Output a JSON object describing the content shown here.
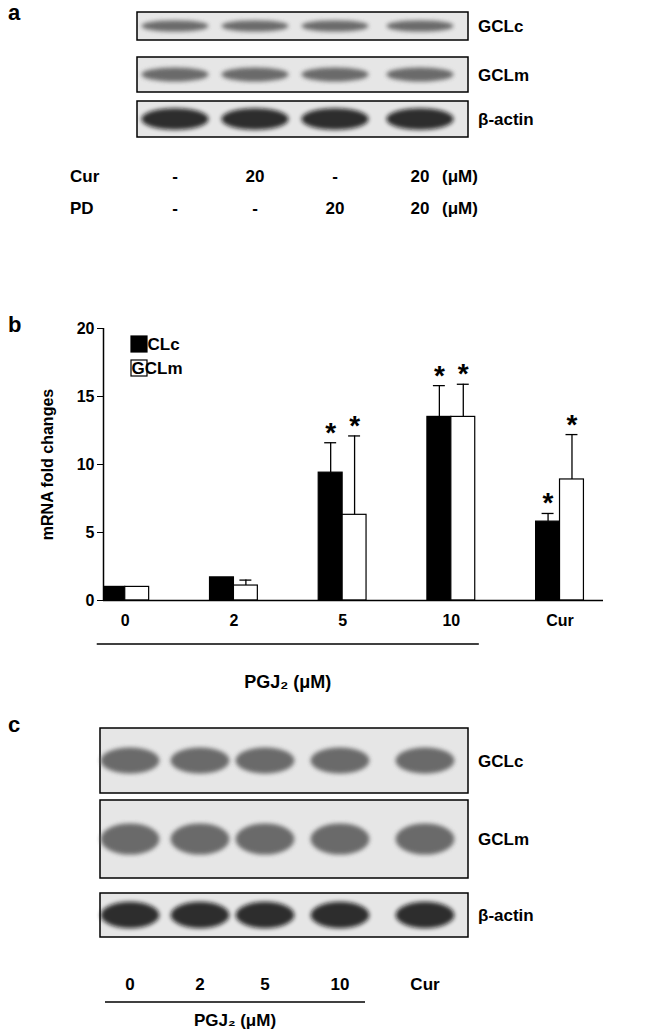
{
  "panel_labels": [
    "a",
    "b",
    "c"
  ],
  "panel_a": {
    "blots": [
      "GCLc",
      "GCLm",
      "β-actin"
    ],
    "treatments": [
      {
        "name": "Cur",
        "lanes": [
          "-",
          "20",
          "-",
          "20"
        ]
      },
      {
        "name": "PD",
        "lanes": [
          "-",
          "-",
          "20",
          "20"
        ]
      }
    ],
    "unit": "(μM)"
  },
  "chart_data": {
    "type": "bar",
    "ylabel": "mRNA fold changes",
    "xlabel": "PGJ₂ (μM)",
    "xlabel_categories": [
      "0",
      "2",
      "5",
      "10"
    ],
    "categories": [
      "0",
      "2",
      "5",
      "10",
      "Cur"
    ],
    "series": [
      {
        "name": "GCLc",
        "color": "#000000",
        "values": [
          1,
          1.7,
          9.4,
          13.5,
          5.8
        ],
        "errors": [
          null,
          null,
          2.2,
          2.3,
          0.6
        ],
        "annotations": [
          null,
          null,
          "*",
          "*",
          "*"
        ]
      },
      {
        "name": "GCLm",
        "color": "#ffffff",
        "values": [
          1,
          1.1,
          6.3,
          13.5,
          8.9
        ],
        "errors": [
          null,
          0.4,
          5.8,
          2.4,
          3.3
        ],
        "annotations": [
          null,
          null,
          "*",
          "*",
          "*"
        ]
      }
    ],
    "ylim": [
      0,
      20
    ],
    "yticks": [
      0,
      5,
      10,
      15,
      20
    ],
    "legend": "top-left"
  },
  "panel_c": {
    "blots": [
      "GCLc",
      "GCLm",
      "β-actin"
    ],
    "lanes": [
      "0",
      "2",
      "5",
      "10",
      "Cur"
    ],
    "group_label": "PGJ₂ (μM)",
    "grouped_lanes": [
      "0",
      "2",
      "5",
      "10"
    ]
  }
}
